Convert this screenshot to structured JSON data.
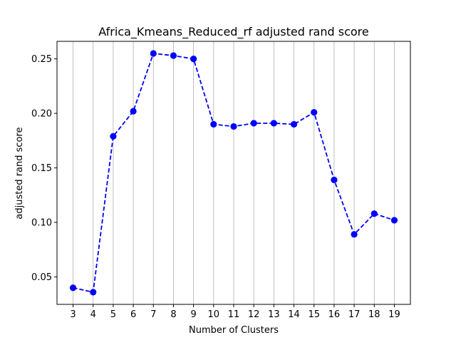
{
  "chart_data": {
    "type": "line",
    "title": "Africa_Kmeans_Reduced_rf adjusted rand score",
    "xlabel": "Number of Clusters",
    "ylabel": "adjusted rand score",
    "x": [
      3,
      4,
      5,
      6,
      7,
      8,
      9,
      10,
      11,
      12,
      13,
      14,
      15,
      16,
      17,
      18,
      19
    ],
    "series": [
      {
        "values": [
          0.04,
          0.036,
          0.179,
          0.202,
          0.255,
          0.253,
          0.25,
          0.19,
          0.188,
          0.191,
          0.191,
          0.19,
          0.201,
          0.139,
          0.089,
          0.108,
          0.102
        ],
        "color": "#0000ff",
        "line_style": "dashed",
        "marker": "circle"
      }
    ],
    "xticks": [
      "3",
      "4",
      "5",
      "6",
      "7",
      "8",
      "9",
      "10",
      "11",
      "12",
      "13",
      "14",
      "15",
      "16",
      "17",
      "18",
      "19"
    ],
    "yticks": [
      "0.05",
      "0.10",
      "0.15",
      "0.20",
      "0.25"
    ],
    "xlim": [
      2.2,
      19.8
    ],
    "ylim": [
      0.0248,
      0.2661
    ],
    "grid": "vertical",
    "grid_color": "#b0b0b0"
  }
}
